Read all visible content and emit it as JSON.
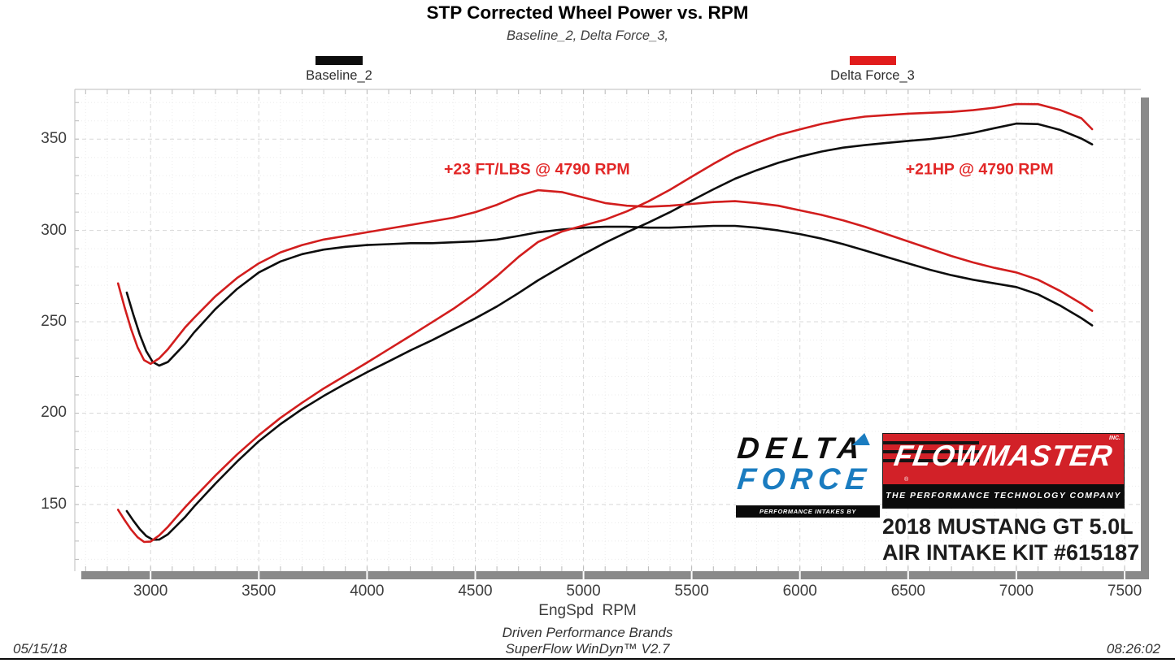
{
  "header": {
    "title": "STP Corrected Wheel Power vs. RPM",
    "subtitle": "Baseline_2, Delta Force_3,"
  },
  "legend": [
    {
      "label": "Baseline_2",
      "color": "#0d0d0d"
    },
    {
      "label": "Delta Force_3",
      "color": "#e11c1c"
    }
  ],
  "chart_data": {
    "type": "line",
    "title": "STP Corrected Wheel Power vs. RPM",
    "subtitle": "Baseline_2, Delta Force_3,",
    "xlabel": "EngSpd  RPM",
    "ylabel": "",
    "grid": true,
    "x_axis": {
      "label": "EngSpd  RPM",
      "min": 2650,
      "max": 7575,
      "ticks": [
        3000,
        3500,
        4000,
        4500,
        5000,
        5500,
        6000,
        6500,
        7000,
        7500
      ],
      "minor_step": 100,
      "major_step": 500,
      "grid_min": 2700,
      "grid_max": 7500
    },
    "y_axis": {
      "min": 113.5,
      "max": 377.2,
      "ticks": [
        150,
        200,
        250,
        300,
        350
      ],
      "minor_step": 10,
      "major_step": 50,
      "grid_min": 120,
      "grid_max": 370
    },
    "series": [
      {
        "name": "Baseline_2 Torque (ft-lbs)",
        "run": "Baseline_2",
        "quantity": "torque",
        "color": "#0d0d0d",
        "width": 2.6,
        "points": [
          [
            2890,
            266
          ],
          [
            2920,
            254
          ],
          [
            2950,
            243
          ],
          [
            2980,
            234
          ],
          [
            3010,
            228
          ],
          [
            3040,
            226
          ],
          [
            3080,
            228
          ],
          [
            3120,
            233
          ],
          [
            3160,
            238
          ],
          [
            3200,
            244
          ],
          [
            3300,
            257
          ],
          [
            3400,
            268
          ],
          [
            3500,
            277
          ],
          [
            3600,
            283
          ],
          [
            3700,
            287
          ],
          [
            3800,
            289.5
          ],
          [
            3900,
            291
          ],
          [
            4000,
            292
          ],
          [
            4100,
            292.5
          ],
          [
            4200,
            293
          ],
          [
            4300,
            293
          ],
          [
            4400,
            293.5
          ],
          [
            4500,
            294
          ],
          [
            4600,
            295
          ],
          [
            4700,
            297
          ],
          [
            4790,
            299
          ],
          [
            4900,
            300.5
          ],
          [
            5000,
            301.5
          ],
          [
            5100,
            302
          ],
          [
            5200,
            302
          ],
          [
            5300,
            301.5
          ],
          [
            5400,
            301.5
          ],
          [
            5500,
            302
          ],
          [
            5600,
            302.5
          ],
          [
            5700,
            302.5
          ],
          [
            5800,
            301.5
          ],
          [
            5900,
            300
          ],
          [
            6000,
            298
          ],
          [
            6100,
            295.5
          ],
          [
            6200,
            292.5
          ],
          [
            6300,
            289
          ],
          [
            6400,
            285.5
          ],
          [
            6500,
            282
          ],
          [
            6600,
            278.5
          ],
          [
            6700,
            275.5
          ],
          [
            6800,
            273
          ],
          [
            6900,
            271
          ],
          [
            7000,
            269
          ],
          [
            7100,
            265
          ],
          [
            7200,
            259
          ],
          [
            7300,
            252
          ],
          [
            7350,
            248
          ]
        ]
      },
      {
        "name": "Baseline_2 Power (hp)",
        "run": "Baseline_2",
        "quantity": "power",
        "color": "#0d0d0d",
        "width": 2.6,
        "points": [
          [
            2890,
            146.4
          ],
          [
            2920,
            141.2
          ],
          [
            2950,
            136.5
          ],
          [
            2980,
            132.8
          ],
          [
            3010,
            130.7
          ],
          [
            3040,
            130.8
          ],
          [
            3080,
            133.7
          ],
          [
            3120,
            138.4
          ],
          [
            3160,
            143.2
          ],
          [
            3200,
            148.7
          ],
          [
            3300,
            161.5
          ],
          [
            3400,
            173.5
          ],
          [
            3500,
            184.6
          ],
          [
            3600,
            194.0
          ],
          [
            3700,
            202.2
          ],
          [
            3800,
            209.4
          ],
          [
            3900,
            216.1
          ],
          [
            4000,
            222.4
          ],
          [
            4100,
            228.3
          ],
          [
            4200,
            234.3
          ],
          [
            4300,
            239.9
          ],
          [
            4400,
            245.9
          ],
          [
            4500,
            251.9
          ],
          [
            4600,
            258.4
          ],
          [
            4700,
            265.7
          ],
          [
            4790,
            272.7
          ],
          [
            4900,
            280.3
          ],
          [
            5000,
            287.0
          ],
          [
            5100,
            293.3
          ],
          [
            5200,
            299.0
          ],
          [
            5300,
            304.3
          ],
          [
            5400,
            310.0
          ],
          [
            5500,
            316.3
          ],
          [
            5600,
            322.5
          ],
          [
            5700,
            328.3
          ],
          [
            5800,
            332.9
          ],
          [
            5900,
            337.0
          ],
          [
            6000,
            340.4
          ],
          [
            6100,
            343.2
          ],
          [
            6200,
            345.3
          ],
          [
            6300,
            346.7
          ],
          [
            6400,
            347.9
          ],
          [
            6500,
            349.0
          ],
          [
            6600,
            350.0
          ],
          [
            6700,
            351.4
          ],
          [
            6800,
            353.4
          ],
          [
            6900,
            356.0
          ],
          [
            7000,
            358.5
          ],
          [
            7100,
            358.2
          ],
          [
            7200,
            355.1
          ],
          [
            7300,
            350.3
          ],
          [
            7350,
            347.1
          ]
        ]
      },
      {
        "name": "Delta Force_3 Torque (ft-lbs)",
        "run": "Delta Force_3",
        "quantity": "torque",
        "color": "#d21d1d",
        "width": 2.6,
        "points": [
          [
            2850,
            271
          ],
          [
            2880,
            258
          ],
          [
            2910,
            246
          ],
          [
            2940,
            236
          ],
          [
            2970,
            229
          ],
          [
            3000,
            227
          ],
          [
            3040,
            230
          ],
          [
            3080,
            235
          ],
          [
            3120,
            241
          ],
          [
            3160,
            247
          ],
          [
            3200,
            252
          ],
          [
            3300,
            264
          ],
          [
            3400,
            274
          ],
          [
            3500,
            282
          ],
          [
            3600,
            288
          ],
          [
            3700,
            292
          ],
          [
            3800,
            295
          ],
          [
            3900,
            297
          ],
          [
            4000,
            299
          ],
          [
            4100,
            301
          ],
          [
            4200,
            303
          ],
          [
            4300,
            305
          ],
          [
            4400,
            307
          ],
          [
            4500,
            310
          ],
          [
            4600,
            314
          ],
          [
            4700,
            319
          ],
          [
            4790,
            322
          ],
          [
            4900,
            321
          ],
          [
            5000,
            318
          ],
          [
            5100,
            315
          ],
          [
            5200,
            313.5
          ],
          [
            5300,
            313
          ],
          [
            5400,
            313.5
          ],
          [
            5500,
            314.5
          ],
          [
            5600,
            315.5
          ],
          [
            5700,
            316
          ],
          [
            5800,
            315
          ],
          [
            5900,
            313.5
          ],
          [
            6000,
            311
          ],
          [
            6100,
            308.5
          ],
          [
            6200,
            305.5
          ],
          [
            6300,
            302
          ],
          [
            6400,
            298
          ],
          [
            6500,
            294
          ],
          [
            6600,
            290
          ],
          [
            6700,
            286
          ],
          [
            6800,
            282.5
          ],
          [
            6900,
            279.5
          ],
          [
            7000,
            277
          ],
          [
            7100,
            273
          ],
          [
            7200,
            267
          ],
          [
            7300,
            260
          ],
          [
            7350,
            256
          ]
        ]
      },
      {
        "name": "Delta Force_3 Power (hp)",
        "run": "Delta Force_3",
        "quantity": "power",
        "color": "#d21d1d",
        "width": 2.6,
        "points": [
          [
            2850,
            147.1
          ],
          [
            2880,
            141.5
          ],
          [
            2910,
            136.3
          ],
          [
            2940,
            132.1
          ],
          [
            2970,
            129.5
          ],
          [
            3000,
            129.7
          ],
          [
            3040,
            133.1
          ],
          [
            3080,
            137.8
          ],
          [
            3120,
            143.2
          ],
          [
            3160,
            148.6
          ],
          [
            3200,
            153.6
          ],
          [
            3300,
            165.9
          ],
          [
            3400,
            177.4
          ],
          [
            3500,
            187.9
          ],
          [
            3600,
            197.4
          ],
          [
            3700,
            205.7
          ],
          [
            3800,
            213.5
          ],
          [
            3900,
            220.6
          ],
          [
            4000,
            227.7
          ],
          [
            4100,
            235.0
          ],
          [
            4200,
            242.3
          ],
          [
            4300,
            249.7
          ],
          [
            4400,
            257.2
          ],
          [
            4500,
            265.6
          ],
          [
            4600,
            275.0
          ],
          [
            4700,
            285.5
          ],
          [
            4790,
            293.7
          ],
          [
            4900,
            299.4
          ],
          [
            5000,
            302.7
          ],
          [
            5100,
            305.9
          ],
          [
            5200,
            310.4
          ],
          [
            5300,
            315.9
          ],
          [
            5400,
            322.3
          ],
          [
            5500,
            329.4
          ],
          [
            5600,
            336.4
          ],
          [
            5700,
            342.9
          ],
          [
            5800,
            347.9
          ],
          [
            5900,
            352.2
          ],
          [
            6000,
            355.3
          ],
          [
            6100,
            358.3
          ],
          [
            6200,
            360.6
          ],
          [
            6300,
            362.3
          ],
          [
            6400,
            363.1
          ],
          [
            6500,
            363.9
          ],
          [
            6600,
            364.4
          ],
          [
            6700,
            364.9
          ],
          [
            6800,
            365.8
          ],
          [
            6900,
            367.2
          ],
          [
            7000,
            369.2
          ],
          [
            7100,
            369.1
          ],
          [
            7200,
            366.0
          ],
          [
            7300,
            361.4
          ],
          [
            7350,
            355.4
          ]
        ]
      }
    ],
    "annotations": [
      {
        "text": "+23 FT/LBS @ 4790 RPM",
        "rpm": 4785,
        "value": 333,
        "color": "#e22727"
      },
      {
        "text": "+21HP @ 4790 RPM",
        "rpm": 6830,
        "value": 333,
        "color": "#e22727"
      }
    ],
    "legend_position": "top"
  },
  "branding": {
    "delta_force": {
      "line1": "DELTA",
      "line2": "FORCE",
      "tagline": "PERFORMANCE INTAKES BY FLOWMASTER",
      "blue": "#1a7cc0"
    },
    "flowmaster": {
      "name": "FLOWMASTER",
      "inc": "INC.",
      "registered": "®",
      "tagline": "THE PERFORMANCE TECHNOLOGY COMPANY",
      "red": "#d22128"
    },
    "vehicle_line1": "2018 MUSTANG GT 5.0L",
    "vehicle_line2": "AIR INTAKE KIT #615187"
  },
  "footer": {
    "date": "05/15/18",
    "brand": "Driven Performance Brands",
    "software": "SuperFlow WinDyn™ V2.7",
    "time": "08:26:02"
  }
}
